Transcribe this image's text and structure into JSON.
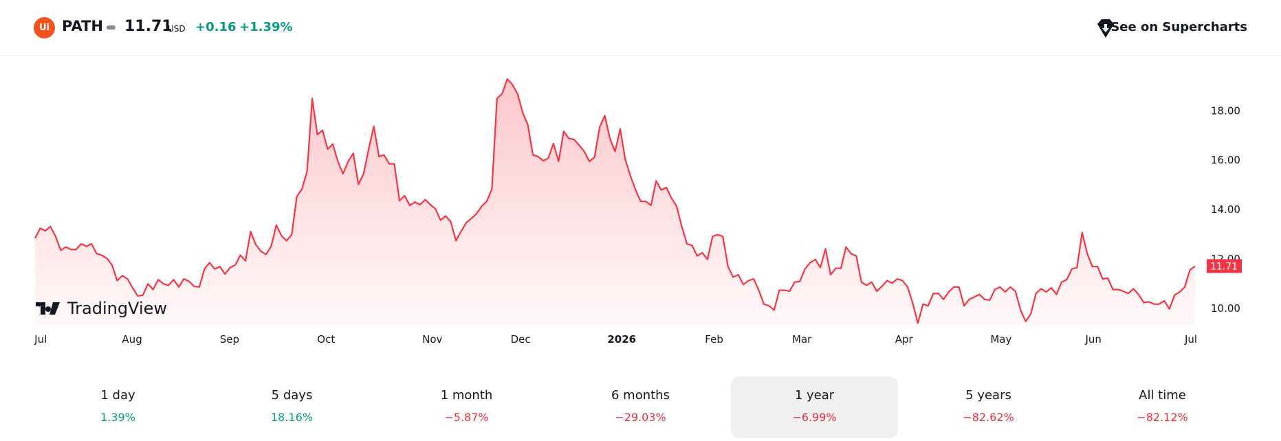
{
  "header": {
    "logo": "Ui",
    "symbol": "PATH",
    "price": "11.71",
    "currency": "USD",
    "change": "+0.16",
    "change_percent": "+1.39%",
    "link": "See on Supercharts"
  },
  "watermark": "TradingView",
  "chart_data": {
    "type": "area",
    "color": "#f23645",
    "values": [
      12.84,
      13.24,
      13.14,
      13.31,
      12.91,
      12.35,
      12.48,
      12.38,
      12.38,
      12.61,
      12.51,
      12.61,
      12.21,
      12.15,
      12.02,
      11.75,
      11.12,
      11.32,
      11.19,
      10.83,
      10.5,
      10.53,
      10.99,
      10.76,
      11.16,
      10.99,
      10.93,
      11.16,
      10.86,
      11.19,
      11.09,
      10.89,
      10.86,
      11.59,
      11.85,
      11.59,
      11.69,
      11.39,
      11.65,
      11.75,
      12.15,
      11.92,
      13.11,
      12.58,
      12.31,
      12.18,
      12.51,
      13.37,
      12.94,
      12.74,
      12.98,
      14.53,
      14.83,
      15.55,
      18.5,
      17.04,
      17.21,
      16.45,
      16.65,
      15.95,
      15.45,
      15.95,
      16.28,
      15.02,
      15.45,
      16.45,
      17.37,
      16.15,
      16.21,
      15.85,
      15.85,
      14.36,
      14.56,
      14.17,
      14.3,
      14.2,
      14.4,
      14.2,
      14.03,
      13.57,
      13.74,
      13.5,
      12.74,
      13.11,
      13.47,
      13.64,
      13.83,
      14.13,
      14.33,
      14.83,
      18.5,
      18.69,
      19.29,
      19.06,
      18.69,
      17.93,
      17.44,
      16.21,
      16.15,
      15.98,
      16.08,
      16.68,
      15.95,
      17.17,
      16.88,
      16.84,
      16.61,
      16.35,
      15.95,
      16.12,
      17.34,
      17.8,
      16.88,
      16.35,
      17.27,
      16.02,
      15.36,
      14.79,
      14.33,
      14.33,
      14.17,
      15.16,
      14.79,
      14.89,
      14.46,
      14.13,
      13.31,
      12.61,
      12.55,
      12.12,
      12.25,
      11.98,
      12.91,
      12.98,
      12.91,
      11.69,
      11.26,
      11.36,
      10.96,
      11.12,
      11.19,
      10.73,
      10.17,
      10.1,
      9.93,
      10.73,
      10.73,
      10.69,
      11.06,
      11.09,
      11.59,
      11.85,
      11.98,
      11.65,
      12.41,
      11.36,
      11.62,
      11.62,
      12.48,
      12.21,
      12.12,
      11.06,
      10.93,
      11.06,
      10.69,
      10.89,
      11.12,
      11.02,
      11.19,
      11.12,
      10.86,
      10.2,
      9.4,
      10.17,
      10.1,
      10.6,
      10.6,
      10.36,
      10.66,
      10.86,
      10.86,
      10.1,
      10.36,
      10.46,
      10.56,
      10.36,
      10.33,
      10.76,
      10.86,
      10.66,
      10.86,
      10.69,
      9.93,
      9.47,
      9.77,
      10.6,
      10.79,
      10.66,
      10.83,
      10.56,
      11.06,
      11.16,
      11.59,
      11.65,
      13.07,
      12.21,
      11.69,
      11.69,
      11.19,
      11.22,
      10.76,
      10.76,
      10.69,
      10.6,
      10.79,
      10.56,
      10.23,
      10.26,
      10.17,
      10.17,
      10.3,
      9.97,
      10.53,
      10.66,
      10.86,
      11.55,
      11.71
    ],
    "xlim": [
      0,
      226
    ],
    "xticks": [
      {
        "value": 1.1,
        "label": "Jul"
      },
      {
        "value": 18.9,
        "label": "Aug"
      },
      {
        "value": 37.9,
        "label": "Sep"
      },
      {
        "value": 56.7,
        "label": "Oct"
      },
      {
        "value": 77.4,
        "label": "Nov"
      },
      {
        "value": 94.6,
        "label": "Dec"
      },
      {
        "value": 114.3,
        "label": "2026"
      },
      {
        "value": 132.3,
        "label": "Feb"
      },
      {
        "value": 149.4,
        "label": "Mar"
      },
      {
        "value": 169.3,
        "label": "Apr"
      },
      {
        "value": 188.2,
        "label": "May"
      },
      {
        "value": 206.2,
        "label": "Jun"
      },
      {
        "value": 225.2,
        "label": "Jul"
      }
    ],
    "ylim": [
      9.27,
      20.18
    ],
    "yticks": [
      {
        "value": 10,
        "label": "10.00"
      },
      {
        "value": 12,
        "label": "12.00"
      },
      {
        "value": 14,
        "label": "14.00"
      },
      {
        "value": 16,
        "label": "16.00"
      },
      {
        "value": 18,
        "label": "18.00"
      }
    ]
  },
  "periods": [
    {
      "label": "1 day",
      "change": "1.39%"
    },
    {
      "label": "5 days",
      "change": "18.16%"
    },
    {
      "label": "1 month",
      "change": "−5.87%"
    },
    {
      "label": "6 months",
      "change": "−29.03%"
    },
    {
      "label": "1 year",
      "change": "−6.99%",
      "selected": true
    },
    {
      "label": "5 years",
      "change": "−82.62%"
    },
    {
      "label": "All time",
      "change": "−82.12%"
    }
  ]
}
